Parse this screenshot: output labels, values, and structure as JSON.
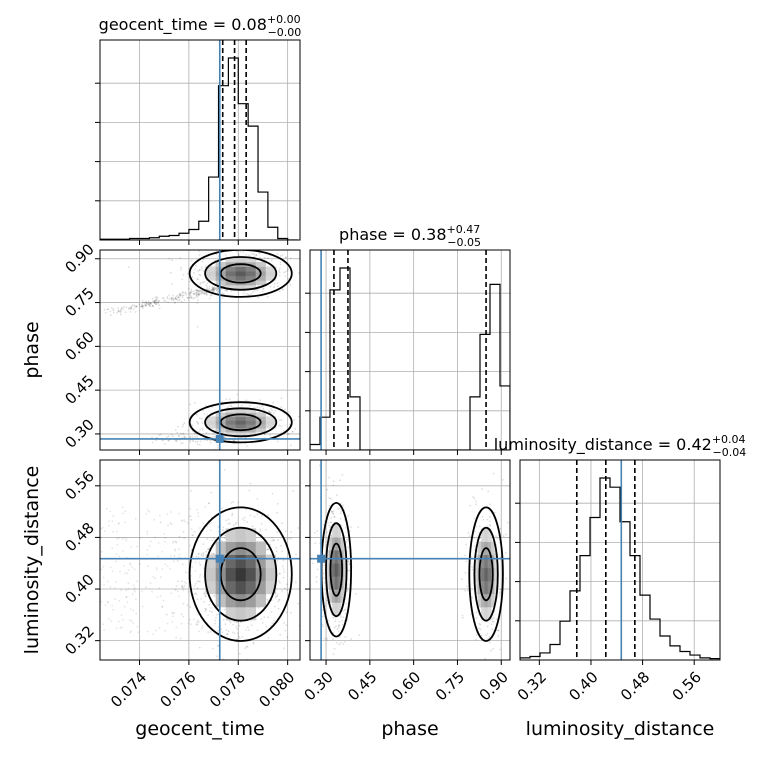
{
  "chart_data": {
    "type": "corner",
    "parameters": [
      "geocent_time",
      "phase",
      "luminosity_distance"
    ],
    "truths": {
      "geocent_time": 0.07725,
      "phase": 0.283,
      "luminosity_distance": 0.447
    },
    "ranges": {
      "geocent_time": [
        0.0724,
        0.0805
      ],
      "phase": [
        0.245,
        0.93
      ],
      "luminosity_distance": [
        0.29,
        0.6
      ]
    },
    "ticks": {
      "geocent_time": [
        0.074,
        0.076,
        0.078,
        0.08
      ],
      "phase": [
        0.3,
        0.45,
        0.6,
        0.75,
        0.9
      ],
      "luminosity_distance": [
        0.32,
        0.4,
        0.48,
        0.56
      ]
    },
    "tick_labels": {
      "geocent_time": [
        "0.074",
        "0.076",
        "0.078",
        "0.080"
      ],
      "phase": [
        "0.30",
        "0.45",
        "0.60",
        "0.75",
        "0.90"
      ],
      "luminosity_distance": [
        "0.32",
        "0.40",
        "0.48",
        "0.56"
      ]
    },
    "axis_labels": {
      "x": [
        "geocent_time",
        "phase",
        "luminosity_distance"
      ],
      "y": [
        "phase",
        "luminosity_distance"
      ]
    },
    "titles": [
      {
        "param": "geocent_time",
        "prefix": "geocent_time = ",
        "value": "0.08",
        "plus": "+0.00",
        "minus": "−0.00"
      },
      {
        "param": "phase",
        "prefix": "phase = ",
        "value": "0.38",
        "plus": "+0.47",
        "minus": "−0.05"
      },
      {
        "param": "luminosity_distance",
        "prefix": "luminosity_distance = ",
        "value": "0.42",
        "plus": "+0.04",
        "minus": "−0.04"
      }
    ],
    "quantiles": {
      "geocent_time": [
        0.07737,
        0.07785,
        0.07832
      ],
      "phase": [
        0.327,
        0.375,
        0.848
      ],
      "luminosity_distance": [
        0.378,
        0.423,
        0.468
      ]
    },
    "hist_1d": {
      "geocent_time": {
        "edges_start": 0.0724,
        "bin_width": 0.0004,
        "counts": [
          1,
          1,
          1,
          2,
          2,
          3,
          5,
          6,
          9,
          14,
          25,
          84,
          206,
          243,
          182,
          152,
          64,
          17,
          2,
          0
        ]
      },
      "phase": {
        "edges_start": 0.245,
        "bin_width": 0.03425,
        "counts": [
          7,
          42,
          205,
          233,
          68,
          0,
          0,
          0,
          0,
          0,
          0,
          0,
          0,
          0,
          0,
          0,
          68,
          148,
          212,
          82
        ]
      },
      "luminosity_distance": {
        "edges_start": 0.29,
        "bin_width": 0.0155,
        "counts": [
          3,
          5,
          10,
          22,
          55,
          98,
          148,
          202,
          258,
          245,
          196,
          148,
          92,
          58,
          34,
          20,
          12,
          7,
          3,
          2
        ]
      }
    },
    "modes_2d": {
      "geocent_time_phase": [
        {
          "x": 0.0781,
          "y": 0.85,
          "sx": 0.0009,
          "sy": 0.035,
          "w": 0.55
        },
        {
          "x": 0.0781,
          "y": 0.34,
          "sx": 0.0009,
          "sy": 0.03,
          "w": 0.42
        }
      ],
      "geocent_time_luminosity_distance": [
        {
          "x": 0.0781,
          "y": 0.423,
          "sx": 0.0009,
          "sy": 0.045,
          "w": 1.0
        }
      ],
      "phase_luminosity_distance": [
        {
          "x": 0.335,
          "y": 0.43,
          "sx": 0.022,
          "sy": 0.045,
          "w": 0.55
        },
        {
          "x": 0.848,
          "y": 0.423,
          "sx": 0.025,
          "sy": 0.045,
          "w": 0.45
        }
      ]
    },
    "truth_color": "#4682b4",
    "grid": true
  }
}
